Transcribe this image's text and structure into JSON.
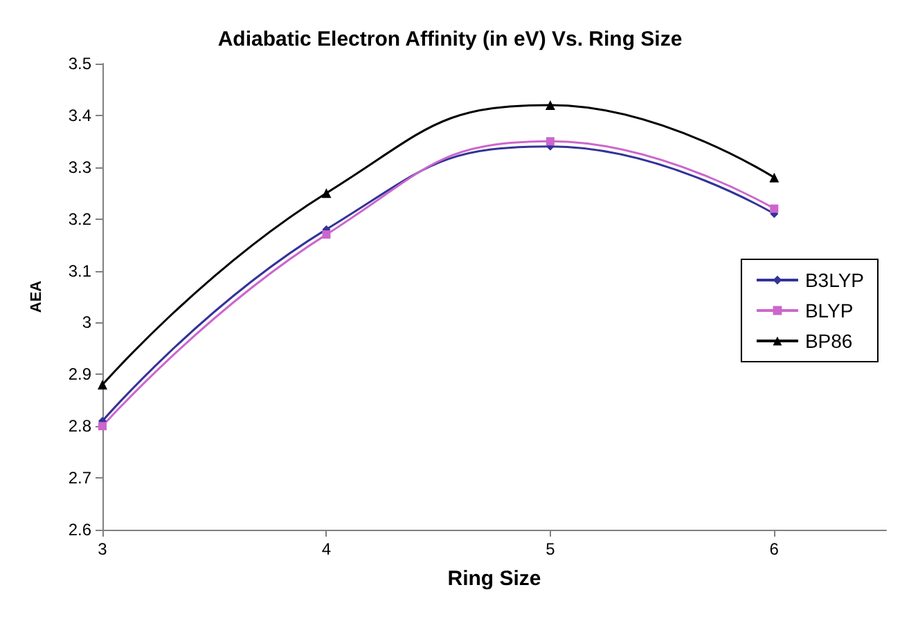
{
  "chart_data": {
    "type": "line",
    "title": "Adiabatic Electron Affinity (in eV) Vs. Ring Size",
    "xlabel": "Ring Size",
    "ylabel": "AEA",
    "x": [
      3,
      4,
      5,
      6
    ],
    "series": [
      {
        "name": "B3LYP",
        "color": "#333399",
        "marker": "diamond",
        "values": [
          2.81,
          3.18,
          3.34,
          3.21
        ]
      },
      {
        "name": "BLYP",
        "color": "#cc66cc",
        "marker": "square",
        "values": [
          2.8,
          3.17,
          3.35,
          3.22
        ]
      },
      {
        "name": "BP86",
        "color": "#000000",
        "marker": "triangle",
        "values": [
          2.88,
          3.25,
          3.42,
          3.28
        ]
      }
    ],
    "xlim": [
      3,
      6.5
    ],
    "xticks": [
      3,
      4,
      5,
      6
    ],
    "ylim": [
      2.6,
      3.5
    ],
    "yticks": [
      2.6,
      2.7,
      2.8,
      2.9,
      3,
      3.1,
      3.2,
      3.3,
      3.4,
      3.5
    ],
    "grid": false,
    "legend": "right",
    "line_style": "solid"
  }
}
